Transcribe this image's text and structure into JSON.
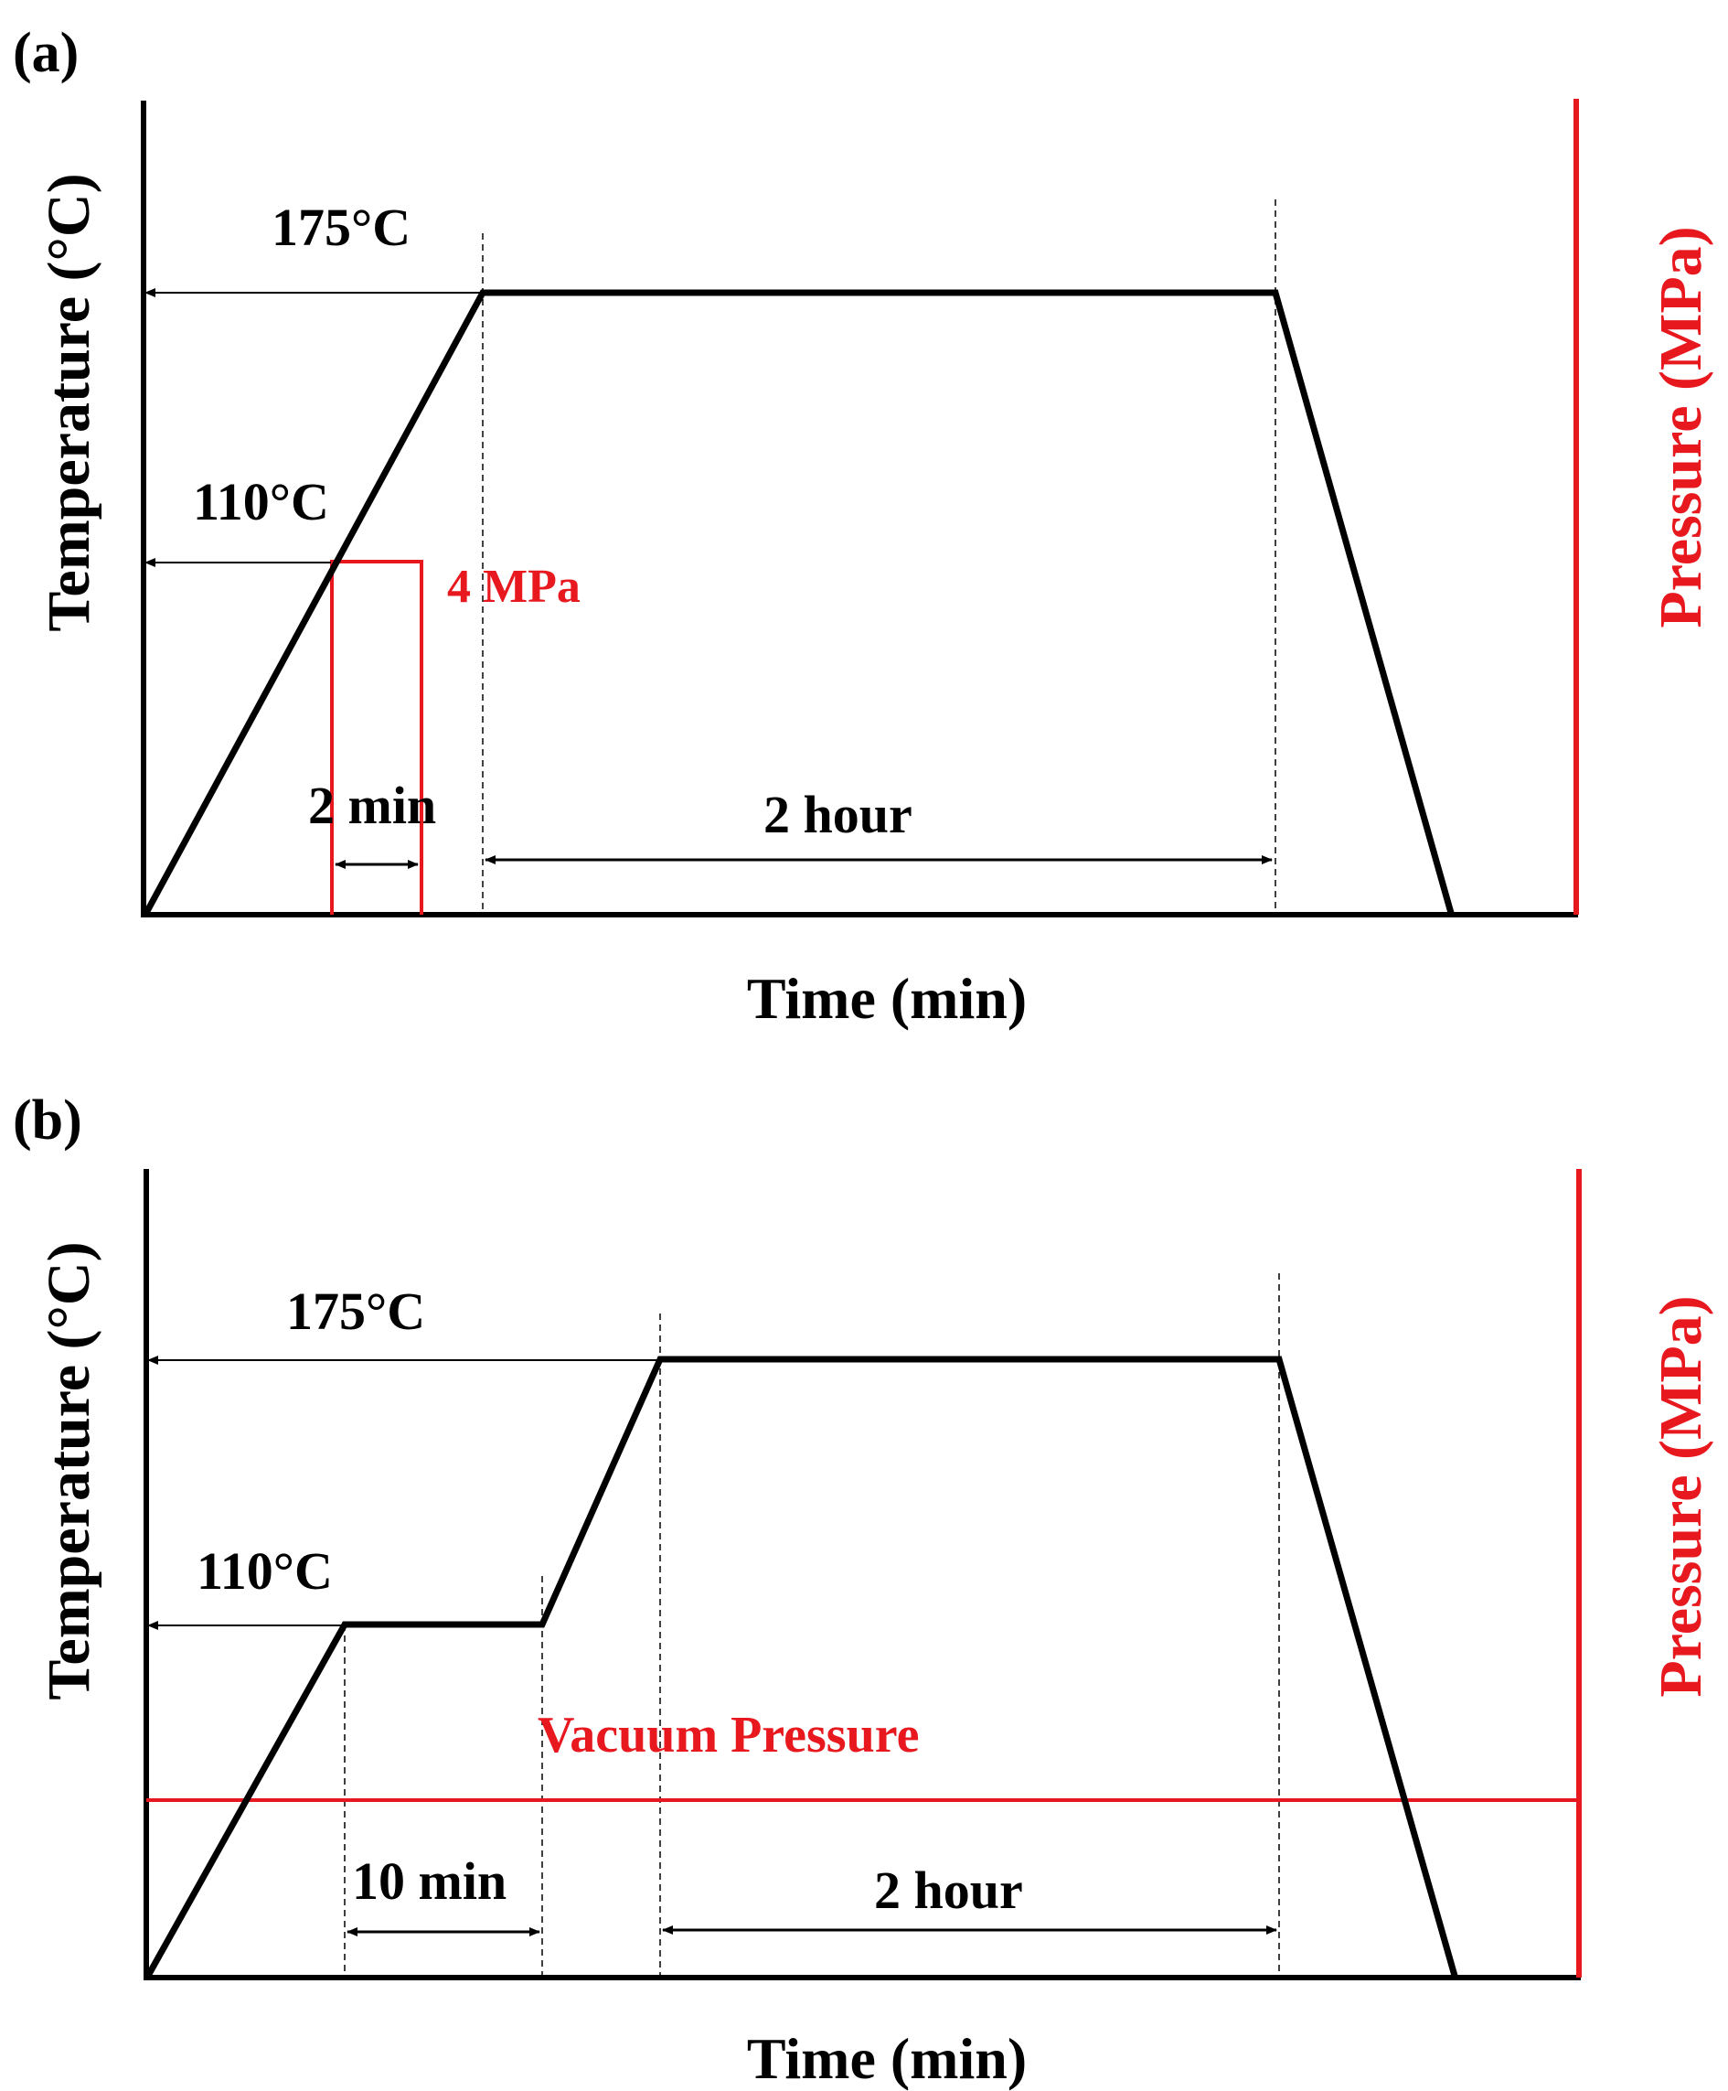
{
  "colors": {
    "ink": "#000000",
    "pressure": "#e8181f"
  },
  "panel_a": {
    "tag": "(a)",
    "y_label": "Temperature (°C)",
    "y2_label": "Pressure (MPa)",
    "x_label": "Time (min)",
    "temp_high": "175°C",
    "temp_mid": "110°C",
    "pressure_value": "4 MPa",
    "short_interval": "2 min",
    "long_interval": "2 hour"
  },
  "panel_b": {
    "tag": "(b)",
    "y_label": "Temperature (°C)",
    "y2_label": "Pressure (MPa)",
    "x_label": "Time (min)",
    "temp_high": "175°C",
    "temp_mid": "110°C",
    "pressure_value": "Vacuum Pressure",
    "short_interval": "10 min",
    "long_interval": "2 hour"
  }
}
